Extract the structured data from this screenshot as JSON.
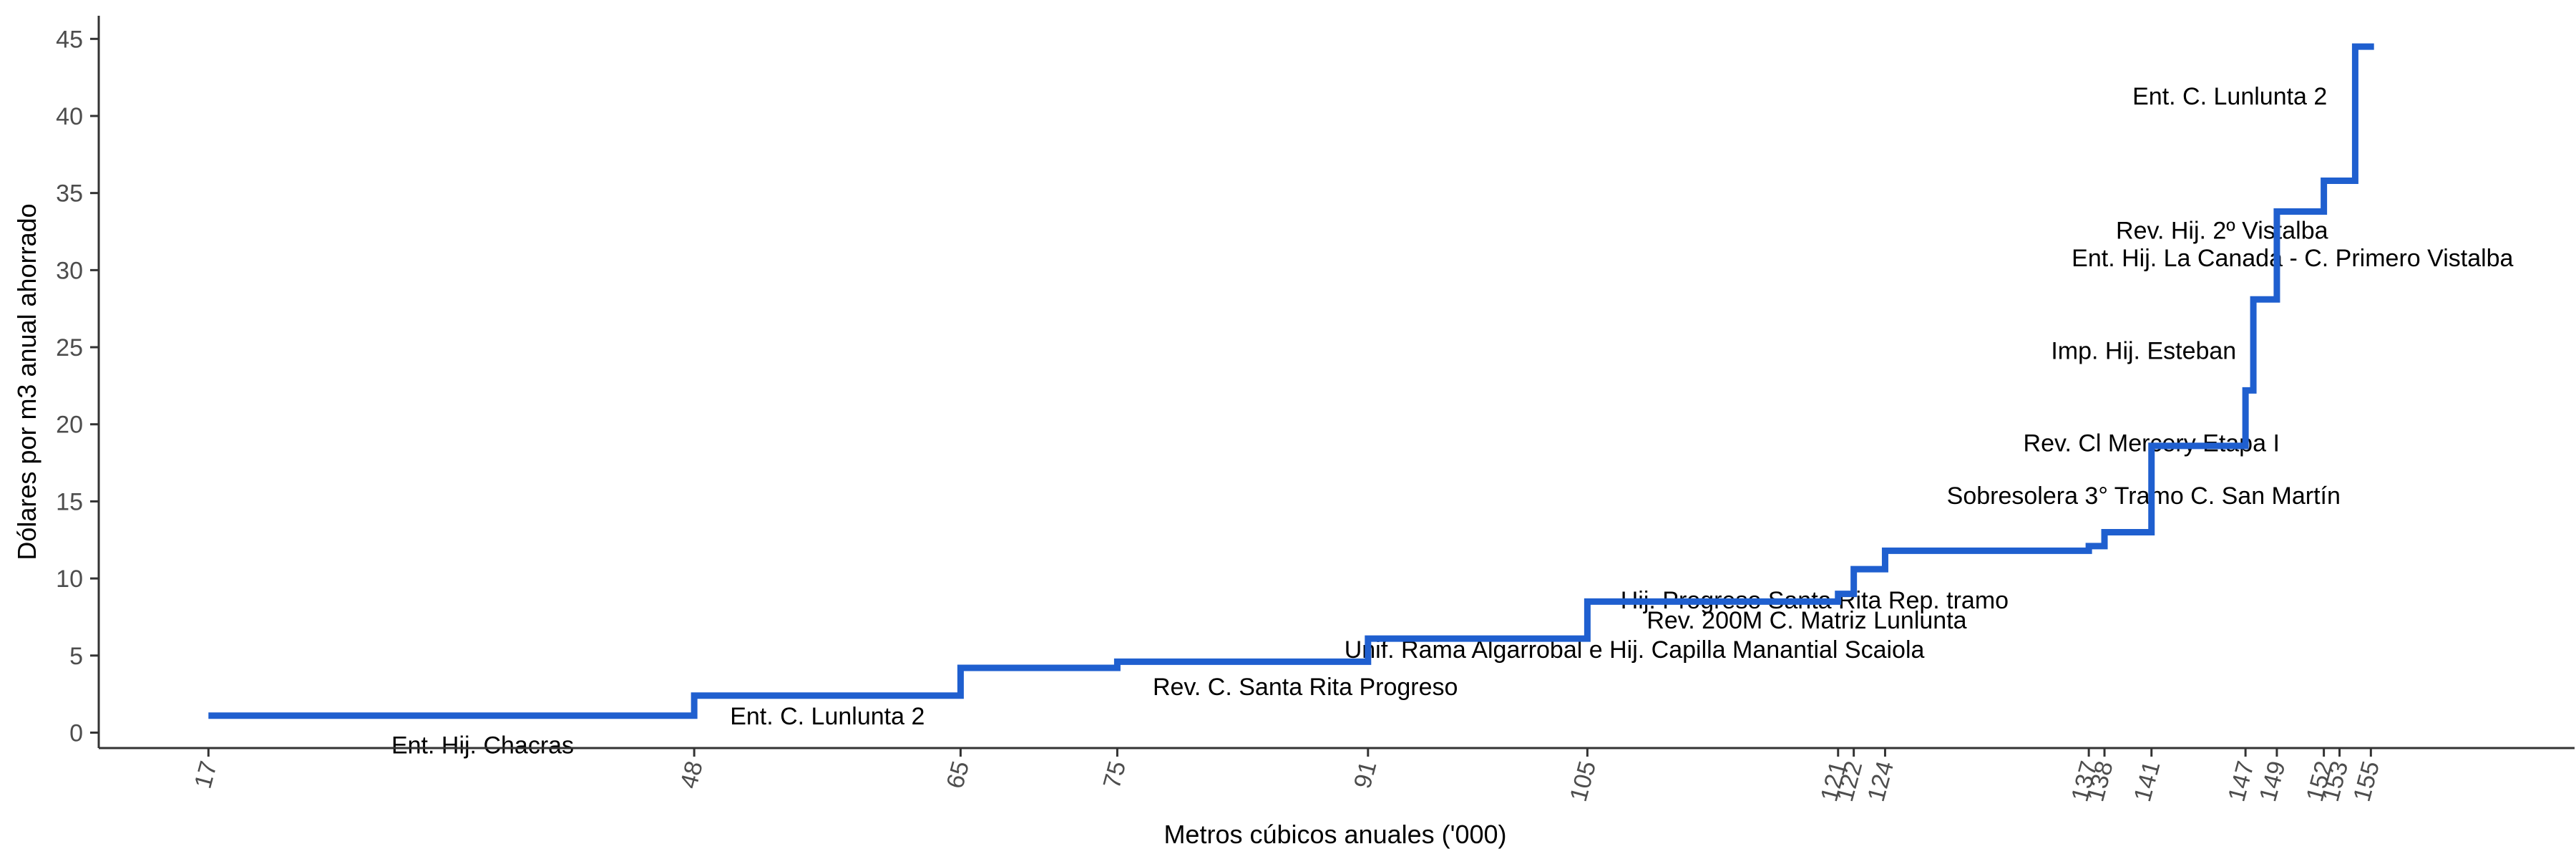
{
  "chart_data": {
    "type": "line",
    "step": true,
    "xlabel": "Metros cúbicos anuales ('000)",
    "ylabel": "Dólares por m3 anual ahorrado",
    "xlim": [
      10,
      168
    ],
    "ylim": [
      -1,
      46.5
    ],
    "x_ticks": [
      17,
      48,
      65,
      75,
      91,
      105,
      121,
      122,
      124,
      137,
      138,
      141,
      147,
      149,
      152,
      153,
      155
    ],
    "y_ticks": [
      0,
      5,
      10,
      15,
      20,
      25,
      30,
      35,
      40,
      45
    ],
    "line_color": "#1f5fcf",
    "grid": false,
    "legend": "none",
    "steps": [
      {
        "x": 17,
        "y": 1.1
      },
      {
        "x": 48,
        "y": 2.4
      },
      {
        "x": 65,
        "y": 4.2
      },
      {
        "x": 75,
        "y": 4.6
      },
      {
        "x": 91,
        "y": 6.1
      },
      {
        "x": 105,
        "y": 8.5
      },
      {
        "x": 121,
        "y": 9.0
      },
      {
        "x": 122,
        "y": 10.6
      },
      {
        "x": 124,
        "y": 11.8
      },
      {
        "x": 137,
        "y": 12.1
      },
      {
        "x": 138,
        "y": 13.0
      },
      {
        "x": 141,
        "y": 18.6
      },
      {
        "x": 147,
        "y": 22.2
      },
      {
        "x": 147.5,
        "y": 28.1
      },
      {
        "x": 149,
        "y": 33.8
      },
      {
        "x": 152,
        "y": 35.8
      },
      {
        "x": 154,
        "y": 44.5
      },
      {
        "x": 155.2,
        "y": 44.5
      }
    ],
    "annotations": [
      {
        "text": "Ent. Hij. Chacras",
        "x": 34.5,
        "y": -0.8
      },
      {
        "text": "Ent. C. Lunlunta 2",
        "x": 56.5,
        "y": 1.1
      },
      {
        "text": "Rev. C. Santa Rita Progreso",
        "x": 87,
        "y": 3.0
      },
      {
        "text": "Unif. Rama Algarrobal e Hij. Capilla Manantial Scaiola",
        "x": 108,
        "y": 5.4
      },
      {
        "text": "Rev. 200M C. Matriz Lunlunta",
        "x": 119,
        "y": 7.3
      },
      {
        "text": "Hij. Progreso Santa Rita Rep. tramo",
        "x": 119.5,
        "y": 8.6
      },
      {
        "text": "Sobresolera 3° Tramo C. San Martín",
        "x": 140.5,
        "y": 15.4
      },
      {
        "text": "Rev. Cl Mercery Etapa I",
        "x": 141,
        "y": 18.8
      },
      {
        "text": "Imp. Hij. Esteban",
        "x": 140.5,
        "y": 24.8
      },
      {
        "text": "Ent. Hij. La Canada - C. Primero Vistalba",
        "x": 150,
        "y": 30.8
      },
      {
        "text": "Rev. Hij. 2º Vistalba",
        "x": 145.5,
        "y": 32.6
      },
      {
        "text": "Ent. C. Lunlunta 2",
        "x": 146,
        "y": 41.3
      }
    ]
  }
}
